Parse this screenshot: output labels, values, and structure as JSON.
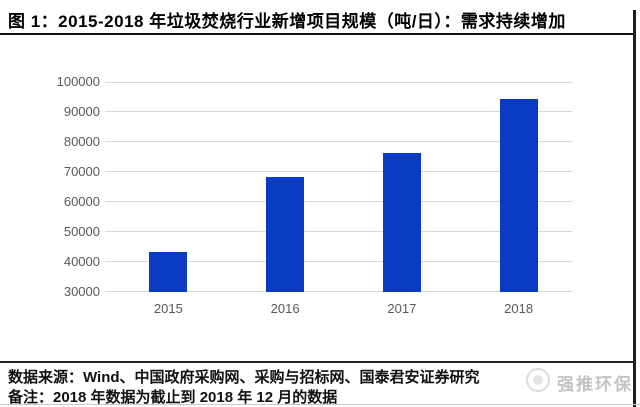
{
  "title": "图 1：2015-2018 年垃圾焚烧行业新增项目规模（吨/日）：需求持续增加",
  "chart_data": {
    "type": "bar",
    "categories": [
      "2015",
      "2016",
      "2017",
      "2018"
    ],
    "values": [
      43500,
      68300,
      76300,
      94300
    ],
    "title": "2015-2018 年垃圾焚烧行业新增项目规模（吨/日）",
    "xlabel": "",
    "ylabel": "",
    "ylim": [
      30000,
      100000
    ],
    "ytick_step": 10000,
    "ytick_labels": [
      "30000",
      "40000",
      "50000",
      "60000",
      "70000",
      "80000",
      "90000",
      "100000"
    ],
    "grid": true,
    "legend_position": "none",
    "bar_color": "#0b3bc3",
    "gridline_color": "#d9d9d9",
    "axis_label_color": "#595959"
  },
  "footer": {
    "source": "数据来源：Wind、中国政府采购网、采购与招标网、国泰君安证券研究",
    "note": "备注：2018 年数据为截止到 2018 年 12 月的数据"
  },
  "watermark": {
    "text": "强推环保"
  }
}
